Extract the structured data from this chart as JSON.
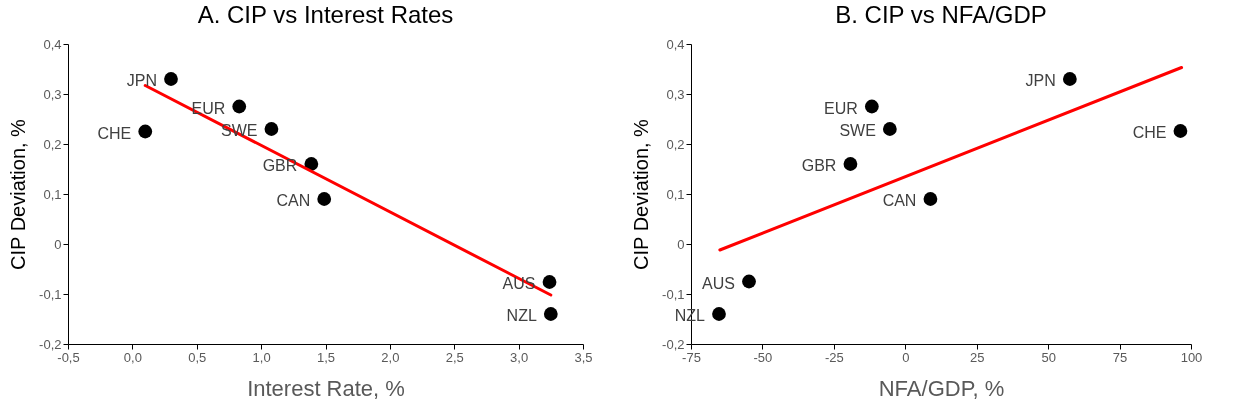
{
  "chart_data": [
    {
      "type": "scatter",
      "title": "A. CIP vs Interest Rates",
      "xlabel": "Interest Rate, %",
      "ylabel": "CIP Deviation, %",
      "xlim": [
        -0.5,
        3.5
      ],
      "xticks": [
        {
          "value": -0.5,
          "label": "-0,5"
        },
        {
          "value": 0,
          "label": "0,0"
        },
        {
          "value": 0.5,
          "label": "0,5"
        },
        {
          "value": 1,
          "label": "1,0"
        },
        {
          "value": 1.5,
          "label": "1,5"
        },
        {
          "value": 2,
          "label": "2,0"
        },
        {
          "value": 2.5,
          "label": "2,5"
        },
        {
          "value": 3,
          "label": "3,0"
        },
        {
          "value": 3.5,
          "label": "3,5"
        }
      ],
      "ylim": [
        -0.2,
        0.4
      ],
      "yticks": [
        {
          "value": -0.2,
          "label": "-0,2"
        },
        {
          "value": -0.1,
          "label": "-0,1"
        },
        0,
        {
          "value": 0.1,
          "label": "0,1"
        },
        {
          "value": 0.2,
          "label": "0,2"
        },
        {
          "value": 0.3,
          "label": "0,3"
        },
        {
          "value": 0.4,
          "label": "0,4"
        }
      ],
      "series": [
        {
          "color": "#000000",
          "marker": "circle",
          "x": [
            0.3,
            0.83,
            1.08,
            0.1,
            1.39,
            1.49,
            3.24,
            3.25
          ],
          "values": [
            0.33,
            0.275,
            0.23,
            0.225,
            0.16,
            0.09,
            -0.076,
            -0.14
          ]
        },
        {
          "type": "line",
          "color": "#ff0000",
          "x": [
            0.1,
            3.25
          ],
          "values": [
            0.317,
            -0.102
          ]
        }
      ],
      "annotations": [
        {
          "text": "JPN",
          "x": 0.3,
          "y": 0.33
        },
        {
          "text": "EUR",
          "x": 0.83,
          "y": 0.275
        },
        {
          "text": "SWE",
          "x": 1.08,
          "y": 0.23
        },
        {
          "text": "CHE",
          "x": 0.1,
          "y": 0.225
        },
        {
          "text": "GBR",
          "x": 1.39,
          "y": 0.16
        },
        {
          "text": "CAN",
          "x": 1.49,
          "y": 0.09
        },
        {
          "text": "AUS",
          "x": 3.24,
          "y": -0.076
        },
        {
          "text": "NZL",
          "x": 3.25,
          "y": -0.14
        }
      ]
    },
    {
      "type": "scatter",
      "title": "B. CIP vs NFA/GDP",
      "xlabel": "NFA/GDP, %",
      "ylabel": "CIP Deviation, %",
      "xlim": [
        -75,
        100
      ],
      "xticks": [
        -75,
        -50,
        -25,
        0,
        25,
        50,
        75,
        100
      ],
      "ylim": [
        -0.2,
        0.4
      ],
      "yticks": [
        {
          "value": -0.2,
          "label": "-0,2"
        },
        {
          "value": -0.1,
          "label": "-0,1"
        },
        0,
        {
          "value": 0.1,
          "label": "0,1"
        },
        {
          "value": 0.2,
          "label": "0,2"
        },
        {
          "value": 0.3,
          "label": "0,3"
        },
        {
          "value": 0.4,
          "label": "0,4"
        }
      ],
      "series": [
        {
          "color": "#000000",
          "marker": "circle",
          "x": [
            57.6,
            -11.7,
            -5.4,
            -19.2,
            8.8,
            96.3,
            -54.7,
            -65.2
          ],
          "values": [
            0.33,
            0.275,
            0.23,
            0.16,
            0.09,
            0.226,
            -0.075,
            -0.14
          ]
        },
        {
          "type": "line",
          "color": "#ff0000",
          "x": [
            -64.9,
            96.7
          ],
          "values": [
            -0.012,
            0.353
          ]
        }
      ],
      "annotations": [
        {
          "text": "JPN",
          "x": 57.6,
          "y": 0.33
        },
        {
          "text": "EUR",
          "x": -11.7,
          "y": 0.275
        },
        {
          "text": "SWE",
          "x": -5.4,
          "y": 0.23
        },
        {
          "text": "GBR",
          "x": -19.2,
          "y": 0.16
        },
        {
          "text": "CAN",
          "x": 8.8,
          "y": 0.09
        },
        {
          "text": "CHE",
          "x": 96.3,
          "y": 0.226
        },
        {
          "text": "AUS",
          "x": -54.7,
          "y": -0.075
        },
        {
          "text": "NZL",
          "x": -65.2,
          "y": -0.14
        }
      ]
    }
  ]
}
